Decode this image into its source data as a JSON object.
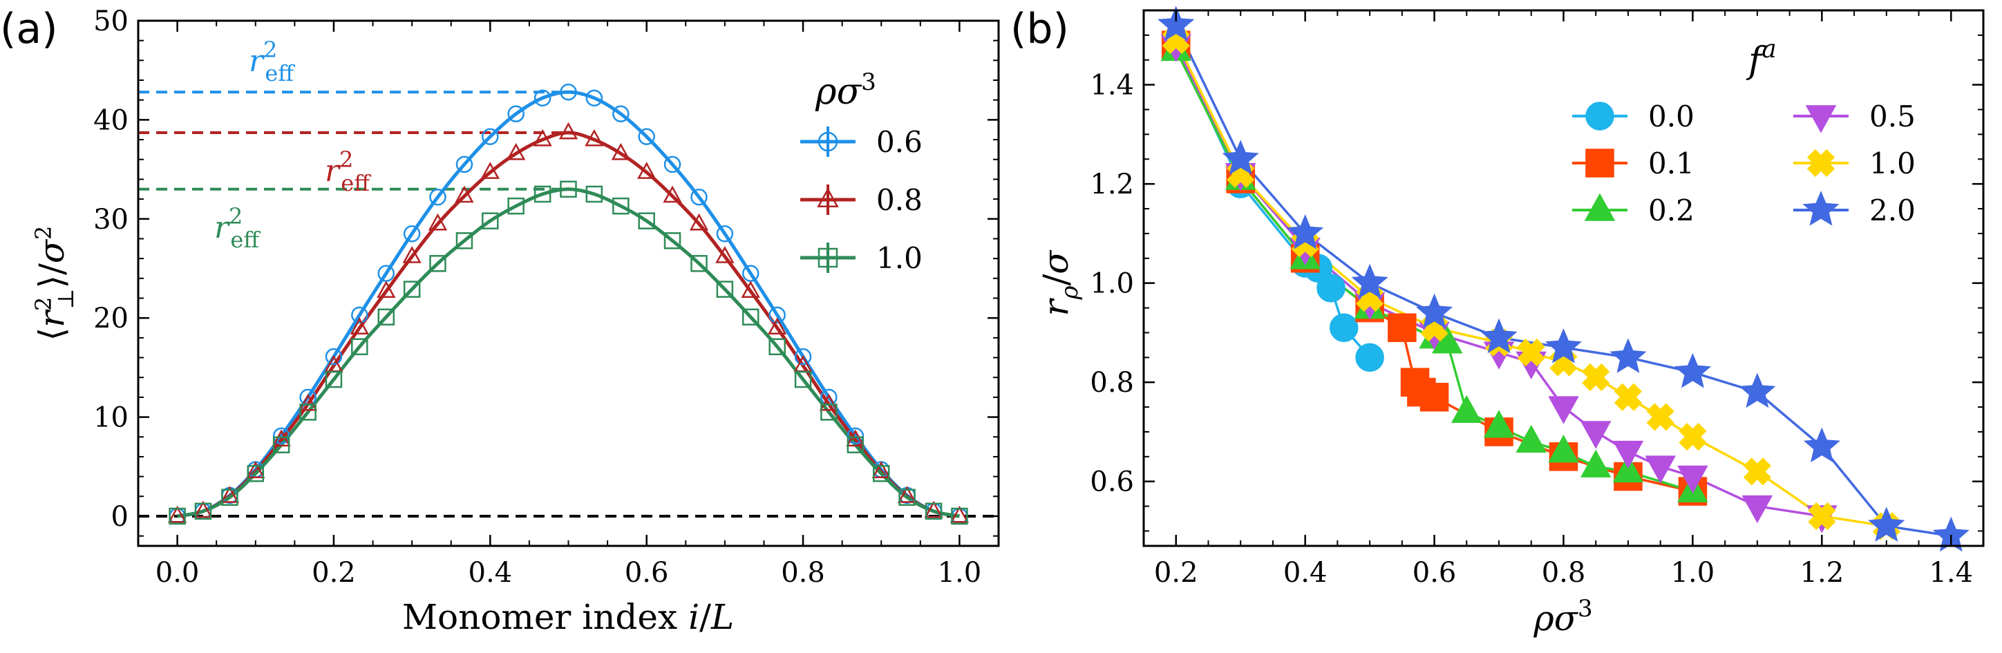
{
  "chart_data": [
    {
      "panel_label": "(a)",
      "type": "line",
      "xlabel": "Monomer index i/L",
      "ylabel": "⟨r⊥²⟩/σ²",
      "xlim": [
        -0.05,
        1.05
      ],
      "ylim": [
        -3,
        50
      ],
      "xticks": [
        0.0,
        0.2,
        0.4,
        0.6,
        0.8,
        1.0
      ],
      "xtick_labels": [
        "0.0",
        "0.2",
        "0.4",
        "0.6",
        "0.8",
        "1.0"
      ],
      "yticks": [
        0,
        10,
        20,
        30,
        40,
        50
      ],
      "ytick_labels": [
        "0",
        "10",
        "20",
        "30",
        "40",
        "50"
      ],
      "legend": {
        "title": "ρσ³",
        "location": "right"
      },
      "zero_line": {
        "y": 0,
        "color": "#000000",
        "style": "dashed"
      },
      "x": [
        0.0,
        0.033,
        0.067,
        0.1,
        0.133,
        0.167,
        0.2,
        0.233,
        0.267,
        0.3,
        0.333,
        0.367,
        0.4,
        0.433,
        0.467,
        0.5,
        0.533,
        0.567,
        0.6,
        0.633,
        0.667,
        0.7,
        0.733,
        0.767,
        0.8,
        0.833,
        0.867,
        0.9,
        0.933,
        0.967,
        1.0
      ],
      "series": [
        {
          "name": "0.6",
          "marker": "circle",
          "color": "#1e90e8",
          "peak": 42.8,
          "values": [
            0.0,
            0.5,
            2.1,
            4.7,
            8.1,
            12.0,
            16.1,
            20.3,
            24.5,
            28.5,
            32.2,
            35.5,
            38.3,
            40.6,
            42.2,
            42.8,
            42.2,
            40.6,
            38.3,
            35.5,
            32.2,
            28.5,
            24.5,
            20.3,
            16.1,
            12.0,
            8.1,
            4.7,
            2.1,
            0.5,
            0.0
          ],
          "ref_label": "r_eff²",
          "ref_label_main": "r",
          "ref_label_sup": "2",
          "ref_label_sub": "eff"
        },
        {
          "name": "0.8",
          "marker": "triangle",
          "color": "#b22222",
          "peak": 38.7,
          "values": [
            0.0,
            0.5,
            2.0,
            4.5,
            7.7,
            11.3,
            15.2,
            19.0,
            22.7,
            26.2,
            29.5,
            32.3,
            34.7,
            36.6,
            38.0,
            38.7,
            38.0,
            36.6,
            34.7,
            32.3,
            29.5,
            26.2,
            22.7,
            19.0,
            15.2,
            11.3,
            7.7,
            4.5,
            2.0,
            0.5,
            0.0
          ],
          "ref_label": "r_eff²",
          "ref_label_main": "r",
          "ref_label_sup": "2",
          "ref_label_sub": "eff"
        },
        {
          "name": "1.0",
          "marker": "square",
          "color": "#2e8b57",
          "peak": 33.0,
          "values": [
            0.0,
            0.5,
            1.9,
            4.3,
            7.2,
            10.5,
            13.8,
            17.1,
            20.1,
            22.9,
            25.5,
            27.8,
            29.8,
            31.3,
            32.5,
            33.0,
            32.5,
            31.3,
            29.8,
            27.8,
            25.5,
            22.9,
            20.1,
            17.1,
            13.8,
            10.5,
            7.2,
            4.3,
            1.9,
            0.5,
            0.0
          ],
          "ref_label": "r_eff²",
          "ref_label_main": "r",
          "ref_label_sup": "2",
          "ref_label_sub": "eff"
        }
      ]
    },
    {
      "panel_label": "(b)",
      "type": "line",
      "xlabel": "ρσ³",
      "ylabel": "rρ/σ",
      "xlim": [
        0.15,
        1.45
      ],
      "ylim": [
        0.47,
        1.55
      ],
      "xticks": [
        0.2,
        0.4,
        0.6,
        0.8,
        1.0,
        1.2,
        1.4
      ],
      "xtick_labels": [
        "0.2",
        "0.4",
        "0.6",
        "0.8",
        "1.0",
        "1.2",
        "1.4"
      ],
      "yticks": [
        0.6,
        0.8,
        1.0,
        1.2,
        1.4
      ],
      "ytick_labels": [
        "0.6",
        "0.8",
        "1.0",
        "1.2",
        "1.4"
      ],
      "legend": {
        "title": "fᵃ",
        "title_main": "f",
        "title_sup": "a",
        "location": "top-right",
        "columns": 2
      },
      "series": [
        {
          "name": "0.0",
          "marker": "circle",
          "color": "#1eb4ec",
          "x": [
            0.2,
            0.3,
            0.4,
            0.42,
            0.44,
            0.46,
            0.5
          ],
          "y": [
            1.48,
            1.2,
            1.04,
            1.03,
            0.99,
            0.91,
            0.85
          ]
        },
        {
          "name": "0.1",
          "marker": "square",
          "color": "#ff4500",
          "x": [
            0.2,
            0.3,
            0.4,
            0.5,
            0.55,
            0.57,
            0.58,
            0.6,
            0.7,
            0.8,
            0.9,
            1.0
          ],
          "y": [
            1.48,
            1.21,
            1.05,
            0.95,
            0.91,
            0.8,
            0.78,
            0.77,
            0.7,
            0.65,
            0.61,
            0.58
          ]
        },
        {
          "name": "0.2",
          "marker": "triangle",
          "color": "#32cd32",
          "x": [
            0.2,
            0.3,
            0.4,
            0.5,
            0.6,
            0.62,
            0.65,
            0.7,
            0.75,
            0.8,
            0.85,
            0.9,
            1.0
          ],
          "y": [
            1.47,
            1.21,
            1.05,
            0.95,
            0.89,
            0.88,
            0.74,
            0.71,
            0.68,
            0.66,
            0.63,
            0.62,
            0.58
          ]
        },
        {
          "name": "0.5",
          "marker": "triangle-down",
          "color": "#b44fe0",
          "x": [
            0.2,
            0.3,
            0.4,
            0.5,
            0.6,
            0.7,
            0.75,
            0.8,
            0.85,
            0.9,
            0.95,
            1.0,
            1.1,
            1.2
          ],
          "y": [
            1.48,
            1.22,
            1.07,
            0.96,
            0.9,
            0.86,
            0.84,
            0.75,
            0.7,
            0.66,
            0.63,
            0.61,
            0.55,
            0.53
          ]
        },
        {
          "name": "1.0",
          "marker": "x-filled",
          "color": "#ffd700",
          "x": [
            0.2,
            0.3,
            0.4,
            0.5,
            0.6,
            0.7,
            0.75,
            0.8,
            0.85,
            0.9,
            0.95,
            1.0,
            1.1,
            1.2,
            1.3
          ],
          "y": [
            1.49,
            1.22,
            1.08,
            0.97,
            0.91,
            0.88,
            0.86,
            0.84,
            0.81,
            0.77,
            0.73,
            0.69,
            0.62,
            0.53,
            0.51
          ]
        },
        {
          "name": "2.0",
          "marker": "star",
          "color": "#4169e1",
          "x": [
            0.2,
            0.3,
            0.4,
            0.5,
            0.6,
            0.7,
            0.8,
            0.9,
            1.0,
            1.1,
            1.2,
            1.3,
            1.4
          ],
          "y": [
            1.52,
            1.25,
            1.1,
            1.0,
            0.94,
            0.89,
            0.87,
            0.85,
            0.82,
            0.78,
            0.67,
            0.51,
            0.49
          ]
        }
      ]
    }
  ]
}
